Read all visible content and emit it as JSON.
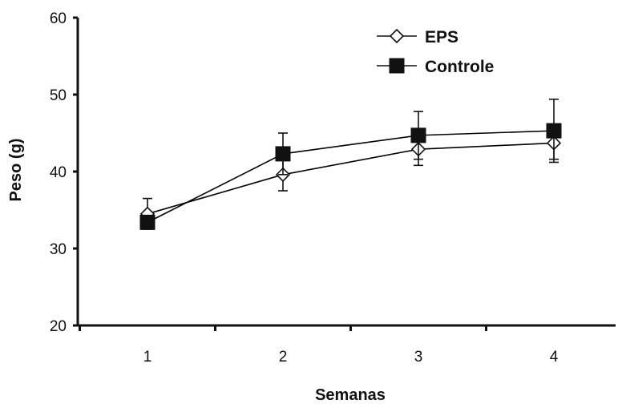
{
  "chart_data": {
    "type": "line",
    "xlabel": "Semanas",
    "ylabel": "Peso (g)",
    "x": [
      1,
      2,
      3,
      4
    ],
    "x_tick_labels": [
      "1",
      "2",
      "3",
      "4"
    ],
    "ylim": [
      20,
      60
    ],
    "y_ticks": [
      20,
      30,
      40,
      50,
      60
    ],
    "y_tick_labels": [
      "20",
      "30",
      "40",
      "50",
      "60"
    ],
    "grid": false,
    "legend_position": "top-right",
    "series": [
      {
        "name": "EPS",
        "marker": "open-diamond",
        "color": "#000000",
        "values": [
          34.5,
          39.6,
          42.9,
          43.7
        ],
        "error": [
          2.0,
          2.1,
          2.1,
          2.1
        ]
      },
      {
        "name": "Controle",
        "marker": "filled-square",
        "color": "#000000",
        "values": [
          33.4,
          42.3,
          44.7,
          45.3
        ],
        "error": [
          0,
          2.7,
          3.1,
          4.1
        ]
      }
    ]
  }
}
